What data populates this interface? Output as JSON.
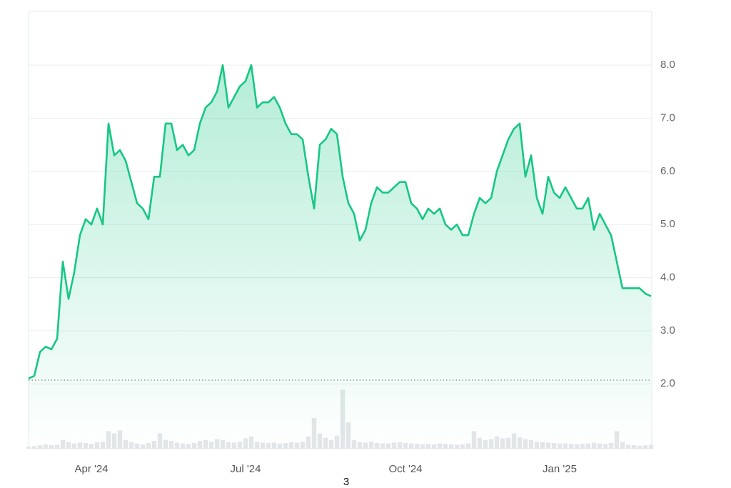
{
  "chart_data": {
    "type": "line",
    "categories": [
      null,
      null,
      null,
      null,
      null,
      null,
      null,
      null,
      null,
      null,
      null,
      "Apr '24",
      null,
      null,
      null,
      null,
      null,
      null,
      null,
      null,
      null,
      null,
      null,
      null,
      null,
      null,
      null,
      null,
      null,
      null,
      null,
      null,
      null,
      null,
      null,
      null,
      null,
      null,
      "Jul '24",
      null,
      null,
      null,
      null,
      null,
      null,
      null,
      null,
      null,
      null,
      null,
      null,
      null,
      null,
      null,
      null,
      null,
      null,
      null,
      null,
      null,
      null,
      null,
      null,
      null,
      null,
      null,
      "Oct '24",
      null,
      null,
      null,
      null,
      null,
      null,
      null,
      null,
      null,
      null,
      null,
      null,
      null,
      null,
      null,
      null,
      null,
      null,
      null,
      null,
      null,
      null,
      null,
      null,
      null,
      null,
      "Jan '25",
      null,
      null,
      null,
      null,
      null,
      null,
      null,
      null,
      null,
      null,
      null,
      null,
      null,
      null,
      null,
      null
    ],
    "series": [
      {
        "color": "#16c784",
        "values": [
          2.1,
          2.15,
          2.6,
          2.7,
          2.65,
          2.85,
          4.3,
          3.6,
          4.1,
          4.8,
          5.1,
          5.0,
          5.3,
          5.0,
          6.9,
          6.3,
          6.4,
          6.2,
          5.8,
          5.4,
          5.3,
          5.1,
          5.9,
          5.9,
          6.9,
          6.9,
          6.4,
          6.5,
          6.3,
          6.4,
          6.9,
          7.2,
          7.3,
          7.5,
          8.0,
          7.2,
          7.4,
          7.6,
          7.7,
          8.0,
          7.2,
          7.3,
          7.3,
          7.4,
          7.2,
          6.9,
          6.7,
          6.7,
          6.6,
          5.9,
          5.3,
          6.5,
          6.6,
          6.8,
          6.7,
          5.9,
          5.4,
          5.2,
          4.7,
          4.9,
          5.4,
          5.7,
          5.6,
          5.6,
          5.7,
          5.8,
          5.8,
          5.4,
          5.3,
          5.1,
          5.3,
          5.2,
          5.3,
          5.0,
          4.9,
          5.0,
          4.8,
          4.8,
          5.2,
          5.5,
          5.4,
          5.5,
          6.0,
          6.3,
          6.6,
          6.8,
          6.9,
          5.9,
          6.3,
          5.5,
          5.2,
          5.9,
          5.6,
          5.5,
          5.7,
          5.5,
          5.3,
          5.3,
          5.5,
          4.9,
          5.2,
          5.0,
          4.8,
          4.3,
          3.8,
          3.8,
          3.8,
          3.8,
          3.7,
          3.65
        ]
      },
      {
        "color": "#e3e6e9",
        "axis": "y2",
        "type": "bar",
        "values": [
          0.5,
          0.6,
          0.8,
          1.0,
          0.8,
          0.9,
          2.0,
          1.5,
          1.2,
          1.4,
          1.3,
          1.1,
          1.5,
          1.6,
          4.0,
          3.5,
          4.2,
          2.0,
          1.5,
          1.2,
          1.0,
          1.3,
          1.8,
          3.5,
          2.0,
          1.8,
          1.4,
          1.2,
          1.1,
          1.3,
          1.8,
          2.0,
          1.6,
          2.2,
          2.0,
          1.5,
          1.4,
          1.6,
          2.4,
          2.8,
          1.6,
          1.4,
          1.3,
          1.4,
          1.2,
          1.3,
          1.5,
          1.4,
          1.6,
          2.8,
          7.0,
          3.5,
          2.5,
          2.0,
          3.0,
          13.5,
          6.0,
          2.0,
          1.5,
          1.4,
          1.6,
          1.3,
          1.2,
          1.2,
          1.4,
          1.5,
          1.3,
          1.2,
          1.1,
          1.0,
          1.1,
          1.0,
          1.2,
          1.1,
          1.0,
          0.9,
          1.0,
          1.2,
          4.0,
          2.5,
          2.0,
          2.2,
          2.8,
          2.4,
          2.5,
          3.5,
          2.6,
          2.2,
          2.0,
          1.6,
          1.5,
          1.4,
          1.3,
          1.2,
          1.2,
          1.1,
          1.0,
          1.1,
          1.2,
          1.4,
          1.2,
          1.1,
          1.3,
          4.0,
          1.5,
          0.9,
          0.8,
          0.7,
          0.8,
          0.9
        ]
      }
    ],
    "ylim": [
      0.78,
      9.01
    ],
    "yticks": [
      {
        "value": 2,
        "label": "2.0"
      },
      {
        "value": 3,
        "label": "3.0"
      },
      {
        "value": 4,
        "label": "4.0"
      },
      {
        "value": 5,
        "label": "5.0"
      },
      {
        "value": 6,
        "label": "6.0"
      },
      {
        "value": 7,
        "label": "7.0"
      },
      {
        "value": 8,
        "label": "8.0"
      }
    ],
    "y2lim": [
      0,
      100
    ],
    "baseline": 2.07,
    "grid": true,
    "area": true,
    "annotations": [
      "3"
    ]
  }
}
